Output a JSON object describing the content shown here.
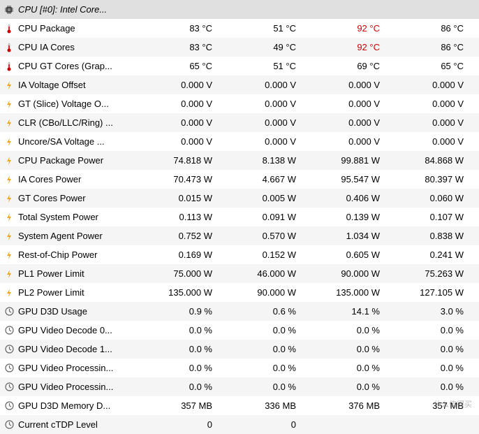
{
  "header": {
    "icon": "chip",
    "label": "CPU [#0]: Intel Core..."
  },
  "colors": {
    "row_odd": "#f5f5f5",
    "row_even": "#ffffff",
    "header_bg": "#e0e0e0",
    "warn_text": "#d00000",
    "normal_text": "#000000"
  },
  "icons": {
    "chip": "▤",
    "thermometer": "🌡",
    "bolt": "⚡",
    "clock": "◷"
  },
  "rows": [
    {
      "icon": "thermometer",
      "label": "CPU Package",
      "v": [
        "83 °C",
        "51 °C",
        "92 °C",
        "86 °C"
      ],
      "warn": [
        false,
        false,
        true,
        false
      ]
    },
    {
      "icon": "thermometer",
      "label": "CPU IA Cores",
      "v": [
        "83 °C",
        "49 °C",
        "92 °C",
        "86 °C"
      ],
      "warn": [
        false,
        false,
        true,
        false
      ]
    },
    {
      "icon": "thermometer",
      "label": "CPU GT Cores (Grap...",
      "v": [
        "65 °C",
        "51 °C",
        "69 °C",
        "65 °C"
      ]
    },
    {
      "icon": "bolt",
      "label": "IA Voltage Offset",
      "v": [
        "0.000 V",
        "0.000 V",
        "0.000 V",
        "0.000 V"
      ]
    },
    {
      "icon": "bolt",
      "label": "GT (Slice) Voltage O...",
      "v": [
        "0.000 V",
        "0.000 V",
        "0.000 V",
        "0.000 V"
      ]
    },
    {
      "icon": "bolt",
      "label": "CLR (CBo/LLC/Ring) ...",
      "v": [
        "0.000 V",
        "0.000 V",
        "0.000 V",
        "0.000 V"
      ]
    },
    {
      "icon": "bolt",
      "label": "Uncore/SA Voltage ...",
      "v": [
        "0.000 V",
        "0.000 V",
        "0.000 V",
        "0.000 V"
      ]
    },
    {
      "icon": "bolt",
      "label": "CPU Package Power",
      "v": [
        "74.818 W",
        "8.138 W",
        "99.881 W",
        "84.868 W"
      ]
    },
    {
      "icon": "bolt",
      "label": "IA Cores Power",
      "v": [
        "70.473 W",
        "4.667 W",
        "95.547 W",
        "80.397 W"
      ]
    },
    {
      "icon": "bolt",
      "label": "GT Cores Power",
      "v": [
        "0.015 W",
        "0.005 W",
        "0.406 W",
        "0.060 W"
      ]
    },
    {
      "icon": "bolt",
      "label": "Total System Power",
      "v": [
        "0.113 W",
        "0.091 W",
        "0.139 W",
        "0.107 W"
      ]
    },
    {
      "icon": "bolt",
      "label": "System Agent Power",
      "v": [
        "0.752 W",
        "0.570 W",
        "1.034 W",
        "0.838 W"
      ]
    },
    {
      "icon": "bolt",
      "label": "Rest-of-Chip Power",
      "v": [
        "0.169 W",
        "0.152 W",
        "0.605 W",
        "0.241 W"
      ]
    },
    {
      "icon": "bolt",
      "label": "PL1 Power Limit",
      "v": [
        "75.000 W",
        "46.000 W",
        "90.000 W",
        "75.263 W"
      ]
    },
    {
      "icon": "bolt",
      "label": "PL2 Power Limit",
      "v": [
        "135.000 W",
        "90.000 W",
        "135.000 W",
        "127.105 W"
      ]
    },
    {
      "icon": "clock",
      "label": "GPU D3D Usage",
      "v": [
        "0.9 %",
        "0.6 %",
        "14.1 %",
        "3.0 %"
      ]
    },
    {
      "icon": "clock",
      "label": "GPU Video Decode 0...",
      "v": [
        "0.0 %",
        "0.0 %",
        "0.0 %",
        "0.0 %"
      ]
    },
    {
      "icon": "clock",
      "label": "GPU Video Decode 1...",
      "v": [
        "0.0 %",
        "0.0 %",
        "0.0 %",
        "0.0 %"
      ]
    },
    {
      "icon": "clock",
      "label": "GPU Video Processin...",
      "v": [
        "0.0 %",
        "0.0 %",
        "0.0 %",
        "0.0 %"
      ]
    },
    {
      "icon": "clock",
      "label": "GPU Video Processin...",
      "v": [
        "0.0 %",
        "0.0 %",
        "0.0 %",
        "0.0 %"
      ]
    },
    {
      "icon": "clock",
      "label": "GPU D3D Memory D...",
      "v": [
        "357 MB",
        "336 MB",
        "376 MB",
        "357 MB"
      ]
    },
    {
      "icon": "clock",
      "label": "Current cTDP Level",
      "v": [
        "0",
        "0",
        "",
        ""
      ]
    }
  ],
  "watermark": "什么值得买"
}
